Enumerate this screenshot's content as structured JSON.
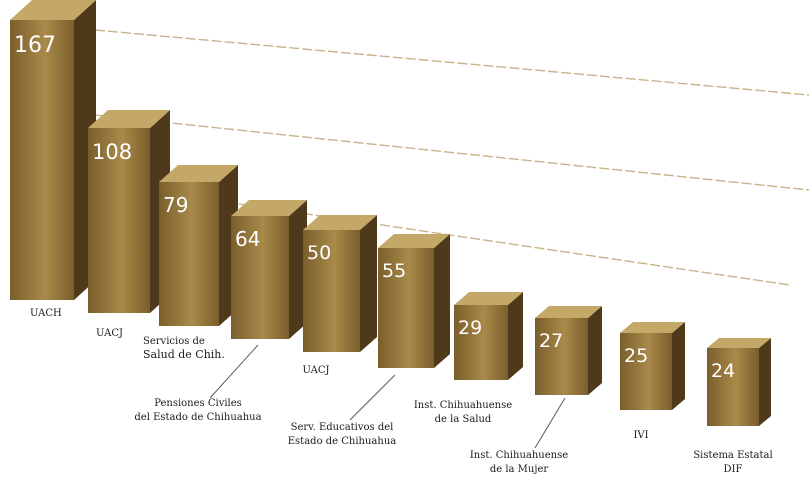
{
  "chart_data": {
    "type": "bar",
    "title": "",
    "xlabel": "",
    "ylabel": "",
    "ylim": [
      0,
      180
    ],
    "grid": true,
    "categories": [
      "UACH",
      "UACJ",
      "Servicios de Salud de Chih.",
      "Pensiones Civiles del Estado de Chihuahua",
      "UACJ",
      "Serv. Educativos del Estado de Chihuahua",
      "Inst. Chihuahuense de la Salud",
      "Inst. Chihuahuense de la Mujer",
      "IVI",
      "Sistema Estatal DIF"
    ],
    "values": [
      167,
      108,
      79,
      64,
      50,
      55,
      29,
      27,
      25,
      24
    ],
    "colors": {
      "front_light": "#a98a4a",
      "front_dark": "#7a5e2c",
      "top": "#c4a868",
      "side": "#4e3a1a",
      "grid": "#c8b48a"
    }
  }
}
